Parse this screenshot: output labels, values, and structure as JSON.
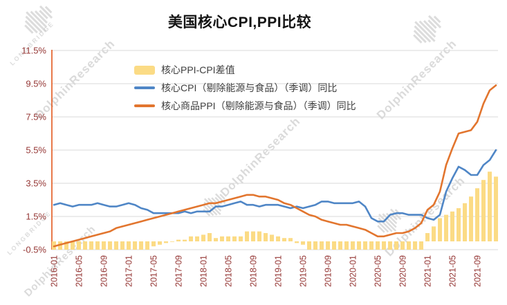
{
  "title": "美国核心CPI,PPI比较",
  "watermarks": {
    "brand": "LONGBRIDGE",
    "name": "DolphinResearch"
  },
  "colors": {
    "bar": "#FBDB85",
    "cpi_line": "#4F86C6",
    "ppi_line": "#E2752E",
    "grid": "#DADADA",
    "axis_line": "#E2571C",
    "tick_text": "#953735"
  },
  "legend": [
    {
      "label": "核心PPI-CPI差值",
      "type": "bar",
      "color": "#FBDB85"
    },
    {
      "label": "核心CPI（剔除能源与食品）（季调）同比",
      "type": "line",
      "color": "#4F86C6"
    },
    {
      "label": "核心商品PPI（剔除能源与食品）（季调）同比",
      "type": "line",
      "color": "#E2752E"
    }
  ],
  "chart_data": {
    "type": "bar",
    "subtype": "combo-bar-and-lines",
    "title": "美国核心CPI,PPI比较",
    "xlabel": "",
    "ylabel": "",
    "ylim": [
      -0.5,
      11.5
    ],
    "grid": true,
    "legend_position": "top-left-inside",
    "y_ticks": [
      -0.5,
      1.5,
      3.5,
      5.5,
      7.5,
      9.5,
      11.5
    ],
    "y_tick_labels": [
      "-0.5%",
      "1.5%",
      "3.5%",
      "5.5%",
      "7.5%",
      "9.5%",
      "11.5%"
    ],
    "x_tick_every": 4,
    "x": [
      "2016-01",
      "2016-02",
      "2016-03",
      "2016-04",
      "2016-05",
      "2016-06",
      "2016-07",
      "2016-08",
      "2016-09",
      "2016-10",
      "2016-11",
      "2016-12",
      "2017-01",
      "2017-02",
      "2017-03",
      "2017-04",
      "2017-05",
      "2017-06",
      "2017-07",
      "2017-08",
      "2017-09",
      "2017-10",
      "2017-11",
      "2017-12",
      "2018-01",
      "2018-02",
      "2018-03",
      "2018-04",
      "2018-05",
      "2018-06",
      "2018-07",
      "2018-08",
      "2018-09",
      "2018-10",
      "2018-11",
      "2018-12",
      "2019-01",
      "2019-02",
      "2019-03",
      "2019-04",
      "2019-05",
      "2019-06",
      "2019-07",
      "2019-08",
      "2019-09",
      "2019-10",
      "2019-11",
      "2019-12",
      "2020-01",
      "2020-02",
      "2020-03",
      "2020-04",
      "2020-05",
      "2020-06",
      "2020-07",
      "2020-08",
      "2020-09",
      "2020-10",
      "2020-11",
      "2020-12",
      "2021-01",
      "2021-02",
      "2021-03",
      "2021-04",
      "2021-05",
      "2021-06",
      "2021-07",
      "2021-08",
      "2021-09",
      "2021-10",
      "2021-11",
      "2021-12"
    ],
    "series": [
      {
        "name": "核心PPI-CPI差值",
        "type": "bar",
        "color": "#FBDB85",
        "values": [
          -2.5,
          -2.5,
          -2.3,
          -2.1,
          -2.1,
          -2.0,
          -1.9,
          -1.9,
          -1.7,
          -1.5,
          -1.3,
          -1.3,
          -1.3,
          -1.1,
          -0.8,
          -0.6,
          -0.3,
          -0.2,
          -0.1,
          0.0,
          0.1,
          0.1,
          0.3,
          0.3,
          0.4,
          0.5,
          0.2,
          0.3,
          0.3,
          0.3,
          0.3,
          0.6,
          0.6,
          0.6,
          0.5,
          0.4,
          0.3,
          0.2,
          0.2,
          -0.1,
          -0.2,
          -0.5,
          -0.7,
          -1.1,
          -1.2,
          -1.2,
          -1.3,
          -1.3,
          -1.4,
          -1.6,
          -1.4,
          -0.9,
          -0.9,
          -0.9,
          -1.2,
          -1.2,
          -1.2,
          -1.0,
          -0.8,
          -0.5,
          0.5,
          0.9,
          1.4,
          1.6,
          1.8,
          2.0,
          2.3,
          2.7,
          3.2,
          3.7,
          4.2,
          3.9
        ]
      },
      {
        "name": "核心CPI（剔除能源与食品）（季调）同比",
        "type": "line",
        "color": "#4F86C6",
        "values": [
          2.2,
          2.3,
          2.2,
          2.1,
          2.2,
          2.2,
          2.2,
          2.3,
          2.2,
          2.1,
          2.1,
          2.2,
          2.3,
          2.2,
          2.0,
          1.9,
          1.7,
          1.7,
          1.7,
          1.7,
          1.7,
          1.8,
          1.7,
          1.8,
          1.8,
          1.8,
          2.1,
          2.1,
          2.2,
          2.3,
          2.4,
          2.2,
          2.2,
          2.1,
          2.2,
          2.2,
          2.2,
          2.1,
          2.0,
          2.1,
          2.0,
          2.1,
          2.2,
          2.4,
          2.4,
          2.3,
          2.3,
          2.3,
          2.3,
          2.4,
          2.1,
          1.4,
          1.2,
          1.2,
          1.6,
          1.7,
          1.7,
          1.6,
          1.6,
          1.6,
          1.4,
          1.3,
          1.6,
          3.0,
          3.8,
          4.5,
          4.3,
          4.0,
          4.0,
          4.6,
          4.9,
          5.5
        ]
      },
      {
        "name": "核心商品PPI（剔除能源与食品）（季调）同比",
        "type": "line",
        "color": "#E2752E",
        "values": [
          -0.3,
          -0.2,
          -0.1,
          0.0,
          0.1,
          0.2,
          0.3,
          0.4,
          0.5,
          0.6,
          0.8,
          0.9,
          1.0,
          1.1,
          1.2,
          1.3,
          1.4,
          1.5,
          1.6,
          1.7,
          1.8,
          1.9,
          2.0,
          2.1,
          2.2,
          2.3,
          2.3,
          2.4,
          2.5,
          2.6,
          2.7,
          2.8,
          2.8,
          2.7,
          2.7,
          2.6,
          2.5,
          2.3,
          2.2,
          2.0,
          1.8,
          1.6,
          1.5,
          1.3,
          1.2,
          1.1,
          1.0,
          1.0,
          0.9,
          0.8,
          0.7,
          0.5,
          0.3,
          0.3,
          0.4,
          0.5,
          0.5,
          0.6,
          0.8,
          1.1,
          1.9,
          2.2,
          3.0,
          4.6,
          5.6,
          6.5,
          6.6,
          6.7,
          7.2,
          8.3,
          9.1,
          9.4
        ]
      }
    ]
  }
}
